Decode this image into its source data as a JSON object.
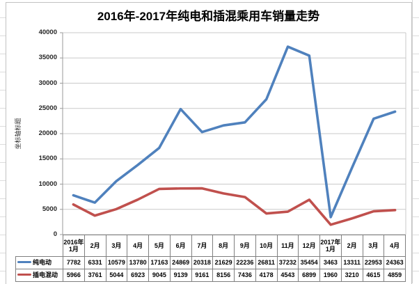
{
  "chart_data": {
    "type": "line",
    "title": "2016年-2017年纯电和插混乘用车销量走势",
    "y_axis_title": "坐标轴标题",
    "categories": [
      "2016年1月",
      "2月",
      "3月",
      "4月",
      "5月",
      "6月",
      "7月",
      "8月",
      "9月",
      "10月",
      "11月",
      "12月",
      "2017年1月",
      "2月",
      "3月",
      "4月"
    ],
    "series": [
      {
        "name": "纯电动",
        "color": "#4F81BD",
        "values": [
          7782,
          6331,
          10579,
          13780,
          17163,
          24869,
          20318,
          21629,
          22236,
          26811,
          37232,
          35454,
          3463,
          13311,
          22953,
          24363
        ]
      },
      {
        "name": "插电混动",
        "color": "#C0504D",
        "values": [
          5966,
          3761,
          5044,
          6923,
          9045,
          9139,
          9161,
          8156,
          7436,
          4178,
          4543,
          6899,
          1960,
          3210,
          4615,
          4859
        ]
      }
    ],
    "y_ticks": [
      0,
      5000,
      10000,
      15000,
      20000,
      25000,
      30000,
      35000,
      40000
    ],
    "ylim": [
      0,
      40000
    ],
    "grid": true,
    "gridline_color": "#c9c9c9",
    "axis_color": "#999999",
    "legend_position": "data-table-left"
  }
}
